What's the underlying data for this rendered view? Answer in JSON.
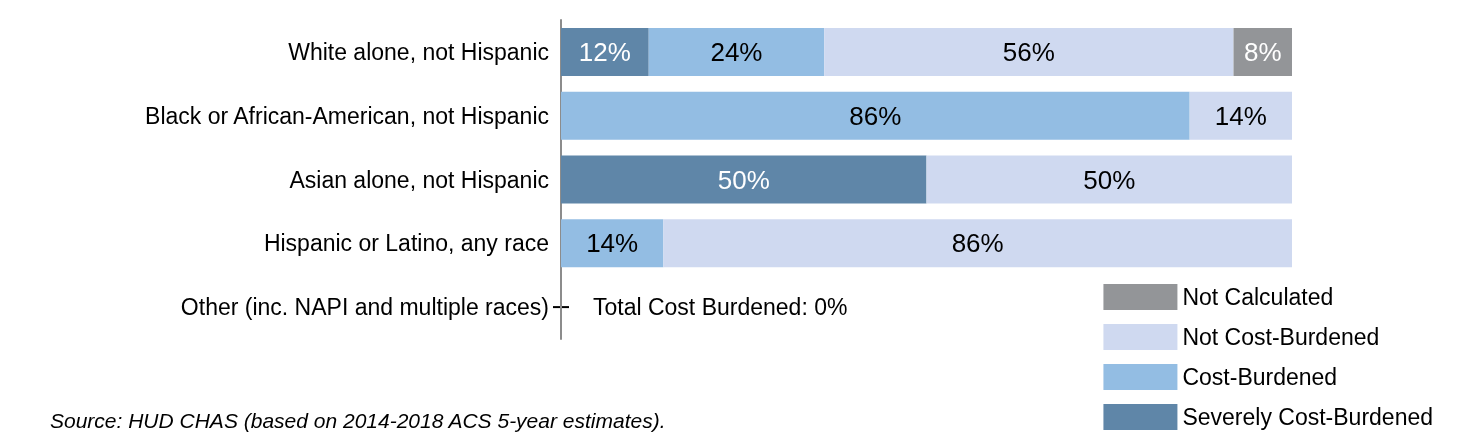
{
  "chart_data": {
    "type": "bar",
    "orientation": "horizontal",
    "stacked": true,
    "categories": [
      "White alone, not Hispanic",
      "Black or African-American, not Hispanic",
      "Asian alone, not Hispanic",
      "Hispanic or Latino, any race",
      "Other (inc. NAPI and multiple races)"
    ],
    "xlim": [
      0,
      100
    ],
    "tick_labels": "y",
    "grid": false,
    "legend": "bottom right",
    "series": [
      {
        "name": "Severely Cost-Burdened",
        "color": "#5f86a8",
        "values": [
          12,
          null,
          50,
          null,
          null
        ],
        "value_labels": [
          "12%",
          null,
          "50%",
          null,
          null
        ]
      },
      {
        "name": "Cost-Burdened",
        "color": "#93bde3",
        "values": [
          24,
          86,
          null,
          14,
          null
        ],
        "value_labels": [
          "24%",
          "86%",
          null,
          "14%",
          null
        ]
      },
      {
        "name": "Not Cost-Burdened",
        "color": "#cfd9f0",
        "values": [
          56,
          14,
          50,
          86,
          null
        ],
        "value_labels": [
          "56%",
          "14%",
          "50%",
          "86%",
          null
        ]
      },
      {
        "name": "Not Calculated",
        "color": "#939598",
        "values": [
          8,
          null,
          null,
          null,
          null
        ],
        "value_labels": [
          "8%",
          null,
          null,
          null,
          null
        ]
      }
    ],
    "annotations": [
      "Total Cost Burdened: 0%",
      "Source: HUD CHAS (based on 2014-2018 ACS 5-year estimates)."
    ]
  }
}
